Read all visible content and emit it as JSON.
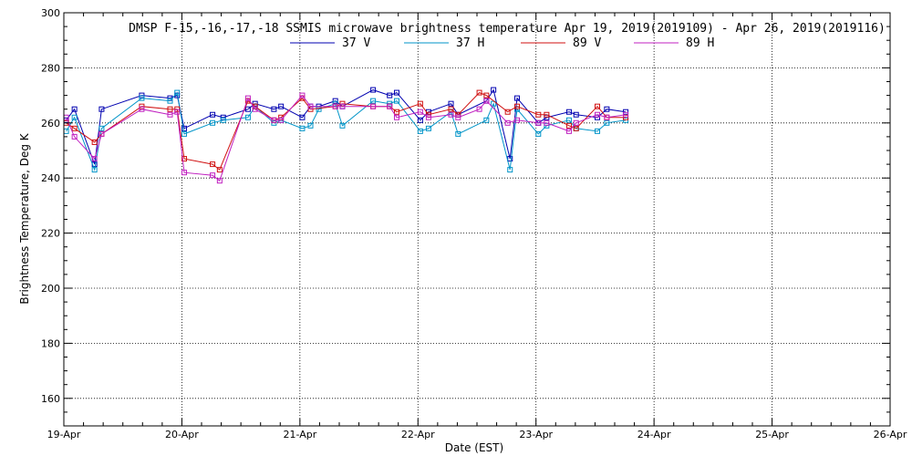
{
  "chart_data": {
    "type": "line",
    "title": "DMSP F-15,-16,-17,-18 SSMIS microwave brightness temperature Apr 19, 2019(2019109) - Apr 26, 2019(2019116)",
    "xlabel": "Date (EST)",
    "ylabel": "Brightness Temperature, Deg K",
    "xlim": [
      0,
      7
    ],
    "ylim": [
      150,
      300
    ],
    "x_ticks": [
      0,
      1,
      2,
      3,
      4,
      5,
      6,
      7
    ],
    "x_tick_labels": [
      "19-Apr",
      "20-Apr",
      "21-Apr",
      "22-Apr",
      "23-Apr",
      "24-Apr",
      "25-Apr",
      "26-Apr"
    ],
    "y_ticks": [
      160,
      180,
      200,
      220,
      240,
      260,
      280,
      300
    ],
    "y_tick_labels": [
      "160",
      "180",
      "200",
      "220",
      "240",
      "260",
      "280",
      "300"
    ],
    "grid": true,
    "legend_position": "top-center",
    "series": [
      {
        "name": "37 V",
        "color": "#0000b0",
        "x": [
          0.02,
          0.09,
          0.26,
          0.32,
          0.66,
          0.9,
          0.96,
          1.02,
          1.26,
          1.35,
          1.56,
          1.62,
          1.78,
          1.84,
          2.02,
          2.09,
          2.16,
          2.3,
          2.36,
          2.62,
          2.76,
          2.82,
          3.02,
          3.09,
          3.28,
          3.34,
          3.58,
          3.64,
          3.78,
          3.84,
          4.02,
          4.09,
          4.28,
          4.34,
          4.52,
          4.6,
          4.76
        ],
        "values": [
          261,
          265,
          245,
          265,
          270,
          269,
          270,
          258,
          263,
          262,
          265,
          267,
          265,
          266,
          262,
          266,
          266,
          268,
          266,
          272,
          270,
          271,
          261,
          264,
          267,
          263,
          268,
          272,
          247,
          269,
          260,
          262,
          264,
          263,
          262,
          265,
          264
        ]
      },
      {
        "name": "37 H",
        "color": "#0094c8",
        "x": [
          0.02,
          0.09,
          0.26,
          0.32,
          0.66,
          0.9,
          0.96,
          1.02,
          1.26,
          1.35,
          1.56,
          1.62,
          1.78,
          1.84,
          2.02,
          2.09,
          2.16,
          2.3,
          2.36,
          2.62,
          2.76,
          2.82,
          3.02,
          3.09,
          3.28,
          3.34,
          3.58,
          3.64,
          3.78,
          3.84,
          4.02,
          4.09,
          4.28,
          4.34,
          4.52,
          4.6,
          4.76
        ],
        "values": [
          257,
          262,
          243,
          258,
          269,
          268,
          271,
          256,
          260,
          261,
          262,
          266,
          260,
          261,
          258,
          259,
          265,
          267,
          259,
          268,
          267,
          268,
          257,
          258,
          264,
          256,
          261,
          267,
          243,
          265,
          256,
          259,
          261,
          258,
          257,
          260,
          261
        ]
      },
      {
        "name": "89 V",
        "color": "#d01010",
        "x": [
          0.02,
          0.09,
          0.26,
          0.32,
          0.66,
          0.9,
          0.96,
          1.02,
          1.26,
          1.32,
          1.56,
          1.62,
          1.78,
          1.84,
          2.02,
          2.09,
          2.3,
          2.36,
          2.62,
          2.76,
          2.82,
          3.02,
          3.09,
          3.28,
          3.34,
          3.52,
          3.58,
          3.76,
          3.84,
          4.02,
          4.09,
          4.28,
          4.34,
          4.52,
          4.6,
          4.76
        ],
        "values": [
          260,
          258,
          253,
          256,
          266,
          265,
          265,
          247,
          245,
          243,
          268,
          266,
          261,
          262,
          269,
          265,
          266,
          267,
          266,
          266,
          264,
          267,
          263,
          265,
          263,
          271,
          270,
          264,
          266,
          263,
          263,
          259,
          258,
          266,
          262,
          262
        ]
      },
      {
        "name": "89 H",
        "color": "#c020c0",
        "x": [
          0.02,
          0.09,
          0.26,
          0.32,
          0.66,
          0.9,
          0.96,
          1.02,
          1.26,
          1.32,
          1.56,
          1.62,
          1.78,
          1.84,
          2.02,
          2.09,
          2.3,
          2.36,
          2.62,
          2.76,
          2.82,
          3.02,
          3.09,
          3.28,
          3.34,
          3.52,
          3.58,
          3.76,
          3.84,
          4.02,
          4.09,
          4.28,
          4.34,
          4.52,
          4.6,
          4.76
        ],
        "values": [
          262,
          255,
          247,
          256,
          265,
          263,
          264,
          242,
          241,
          239,
          269,
          265,
          261,
          261,
          270,
          266,
          266,
          266,
          266,
          266,
          262,
          264,
          262,
          263,
          262,
          265,
          268,
          260,
          261,
          260,
          260,
          257,
          260,
          263,
          262,
          263
        ]
      }
    ]
  }
}
